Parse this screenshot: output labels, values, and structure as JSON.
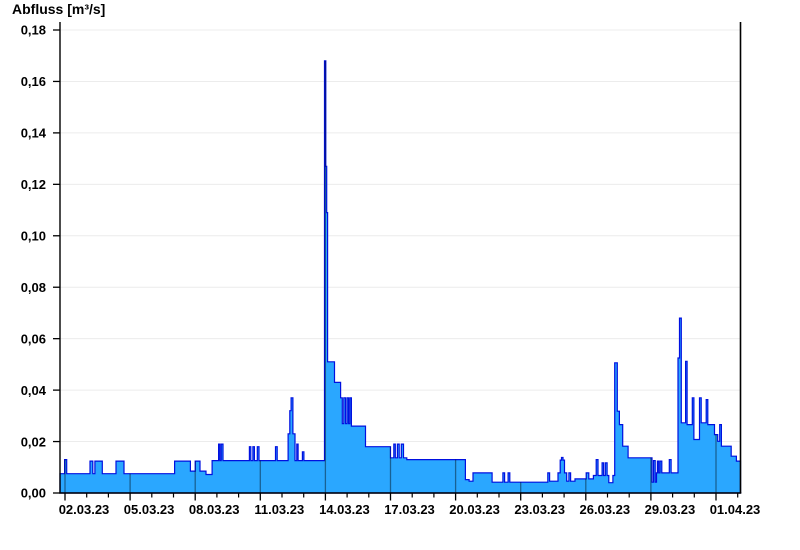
{
  "chart_data": {
    "type": "area",
    "title": "Abfluss [m³/s]",
    "ylabel": "Abfluss [m³/s]",
    "xlabel": "",
    "grid": "horizontal-light",
    "legend": "none",
    "y_axis": {
      "range": [
        0,
        0.185
      ],
      "tick_step": 0.02,
      "ticks": [
        {
          "value": 0.0,
          "label": "0,00"
        },
        {
          "value": 0.02,
          "label": "0,02"
        },
        {
          "value": 0.04,
          "label": "0,04"
        },
        {
          "value": 0.06,
          "label": "0,06"
        },
        {
          "value": 0.08,
          "label": "0,08"
        },
        {
          "value": 0.1,
          "label": "0,10"
        },
        {
          "value": 0.12,
          "label": "0,12"
        },
        {
          "value": 0.14,
          "label": "0,14"
        },
        {
          "value": 0.16,
          "label": "0,16"
        },
        {
          "value": 0.18,
          "label": "0,18"
        }
      ]
    },
    "x_axis": {
      "unit": "days-of-march-2023",
      "range_days": [
        1.77,
        33.16
      ],
      "minor_tick_every_days": 1,
      "major_ticks": [
        {
          "day": 2,
          "label": "02.03.23"
        },
        {
          "day": 5,
          "label": "05.03.23"
        },
        {
          "day": 8,
          "label": "08.03.23"
        },
        {
          "day": 11,
          "label": "11.03.23"
        },
        {
          "day": 14,
          "label": "14.03.23"
        },
        {
          "day": 17,
          "label": "17.03.23"
        },
        {
          "day": 20,
          "label": "20.03.23"
        },
        {
          "day": 23,
          "label": "23.03.23"
        },
        {
          "day": 26,
          "label": "26.03.23"
        },
        {
          "day": 29,
          "label": "29.03.23"
        },
        {
          "day": 32,
          "label": "01.04.23"
        }
      ]
    },
    "series": [
      {
        "name": "Abfluss",
        "step": true,
        "points": [
          [
            1.77,
            0.0075
          ],
          [
            1.98,
            0.013
          ],
          [
            2.08,
            0.0075
          ],
          [
            3.15,
            0.0124
          ],
          [
            3.28,
            0.0075
          ],
          [
            3.38,
            0.0124
          ],
          [
            3.72,
            0.0075
          ],
          [
            4.35,
            0.0124
          ],
          [
            4.72,
            0.0075
          ],
          [
            7.05,
            0.0124
          ],
          [
            7.78,
            0.0085
          ],
          [
            8.0,
            0.0124
          ],
          [
            8.22,
            0.0085
          ],
          [
            8.5,
            0.0072
          ],
          [
            8.78,
            0.0126
          ],
          [
            9.08,
            0.019
          ],
          [
            9.14,
            0.0126
          ],
          [
            9.2,
            0.019
          ],
          [
            9.28,
            0.0126
          ],
          [
            10.5,
            0.018
          ],
          [
            10.56,
            0.0126
          ],
          [
            10.66,
            0.018
          ],
          [
            10.73,
            0.0126
          ],
          [
            10.86,
            0.018
          ],
          [
            10.94,
            0.0126
          ],
          [
            11.7,
            0.018
          ],
          [
            11.78,
            0.0126
          ],
          [
            12.28,
            0.023
          ],
          [
            12.36,
            0.032
          ],
          [
            12.42,
            0.037
          ],
          [
            12.5,
            0.023
          ],
          [
            12.6,
            0.0126
          ],
          [
            12.68,
            0.019
          ],
          [
            12.74,
            0.0126
          ],
          [
            12.94,
            0.016
          ],
          [
            13.01,
            0.0126
          ],
          [
            13.96,
            0.168
          ],
          [
            14.02,
            0.127
          ],
          [
            14.06,
            0.109
          ],
          [
            14.1,
            0.051
          ],
          [
            14.42,
            0.043
          ],
          [
            14.7,
            0.037
          ],
          [
            14.78,
            0.027
          ],
          [
            14.85,
            0.037
          ],
          [
            14.93,
            0.027
          ],
          [
            15.0,
            0.037
          ],
          [
            15.07,
            0.027
          ],
          [
            15.13,
            0.037
          ],
          [
            15.2,
            0.026
          ],
          [
            15.85,
            0.018
          ],
          [
            17.0,
            0.0137
          ],
          [
            17.15,
            0.019
          ],
          [
            17.22,
            0.0137
          ],
          [
            17.32,
            0.019
          ],
          [
            17.4,
            0.0137
          ],
          [
            17.5,
            0.019
          ],
          [
            17.6,
            0.0137
          ],
          [
            17.75,
            0.013
          ],
          [
            20.45,
            0.0052
          ],
          [
            20.62,
            0.0046
          ],
          [
            20.8,
            0.0078
          ],
          [
            21.68,
            0.0042
          ],
          [
            22.18,
            0.0078
          ],
          [
            22.26,
            0.0042
          ],
          [
            22.42,
            0.0078
          ],
          [
            22.5,
            0.0042
          ],
          [
            24.25,
            0.0078
          ],
          [
            24.33,
            0.0046
          ],
          [
            24.72,
            0.0078
          ],
          [
            24.82,
            0.0128
          ],
          [
            24.88,
            0.0138
          ],
          [
            24.95,
            0.0128
          ],
          [
            25.02,
            0.0078
          ],
          [
            25.12,
            0.0046
          ],
          [
            25.22,
            0.0078
          ],
          [
            25.3,
            0.0046
          ],
          [
            25.5,
            0.0055
          ],
          [
            26.02,
            0.0078
          ],
          [
            26.14,
            0.0055
          ],
          [
            26.35,
            0.0068
          ],
          [
            26.48,
            0.013
          ],
          [
            26.56,
            0.0068
          ],
          [
            26.75,
            0.0117
          ],
          [
            26.82,
            0.0068
          ],
          [
            26.9,
            0.0117
          ],
          [
            26.98,
            0.0068
          ],
          [
            27.06,
            0.004
          ],
          [
            27.25,
            0.0068
          ],
          [
            27.33,
            0.0506
          ],
          [
            27.45,
            0.0318
          ],
          [
            27.55,
            0.0266
          ],
          [
            27.7,
            0.0182
          ],
          [
            27.95,
            0.0137
          ],
          [
            29.05,
            0.0042
          ],
          [
            29.12,
            0.0126
          ],
          [
            29.2,
            0.0042
          ],
          [
            29.26,
            0.0078
          ],
          [
            29.3,
            0.0124
          ],
          [
            29.36,
            0.0078
          ],
          [
            29.42,
            0.0124
          ],
          [
            29.5,
            0.0078
          ],
          [
            29.85,
            0.013
          ],
          [
            29.93,
            0.0078
          ],
          [
            30.25,
            0.0525
          ],
          [
            30.32,
            0.068
          ],
          [
            30.4,
            0.0273
          ],
          [
            30.6,
            0.0512
          ],
          [
            30.67,
            0.0266
          ],
          [
            30.91,
            0.037
          ],
          [
            30.98,
            0.0208
          ],
          [
            31.24,
            0.037
          ],
          [
            31.32,
            0.0273
          ],
          [
            31.55,
            0.0363
          ],
          [
            31.62,
            0.0266
          ],
          [
            31.93,
            0.0227
          ],
          [
            32.08,
            0.0201
          ],
          [
            32.17,
            0.0266
          ],
          [
            32.25,
            0.0182
          ],
          [
            32.7,
            0.0143
          ],
          [
            32.94,
            0.0124
          ]
        ]
      }
    ],
    "colors": {
      "fill": "#2AA7FF",
      "outline": "#0010E0",
      "grid_horizontal": "#ECECEC",
      "major_tick_line_in_fill": "rgba(0,0,0,0.42)",
      "axis": "#000000",
      "background": "#FFFFFF"
    }
  }
}
